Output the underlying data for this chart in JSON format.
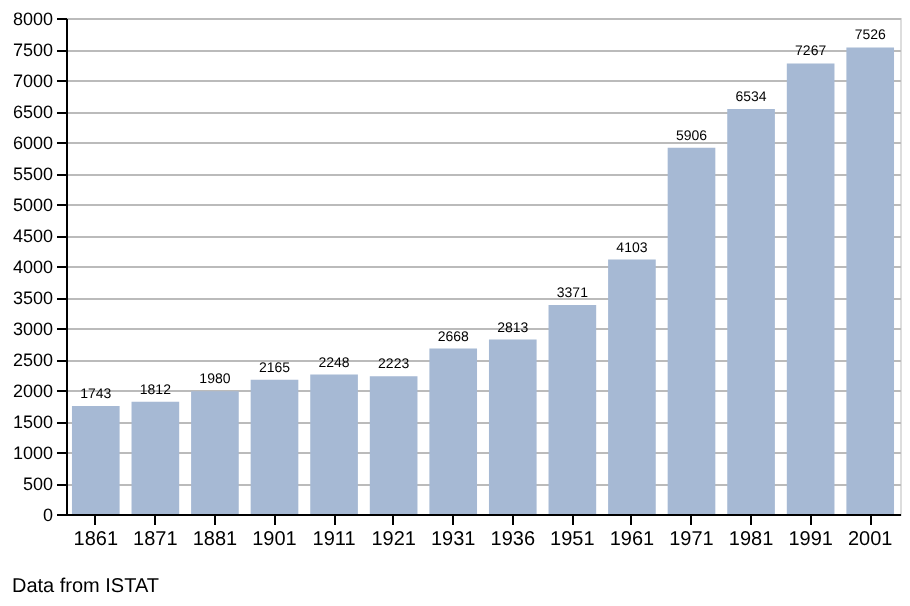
{
  "chart_data": {
    "type": "bar",
    "categories": [
      "1861",
      "1871",
      "1881",
      "1901",
      "1911",
      "1921",
      "1931",
      "1936",
      "1951",
      "1961",
      "1971",
      "1981",
      "1991",
      "2001"
    ],
    "values": [
      1743,
      1812,
      1980,
      2165,
      2248,
      2223,
      2668,
      2813,
      3371,
      4103,
      5906,
      6534,
      7267,
      7526
    ],
    "color": "#a6b9d4",
    "ylim": [
      0,
      8000
    ],
    "yticks": [
      0,
      500,
      1000,
      1500,
      2000,
      2500,
      3000,
      3500,
      4000,
      4500,
      5000,
      5500,
      6000,
      6500,
      7000,
      7500,
      8000
    ],
    "grid": "y",
    "data_labels": true,
    "annotations": [
      "Data from ISTAT"
    ]
  }
}
